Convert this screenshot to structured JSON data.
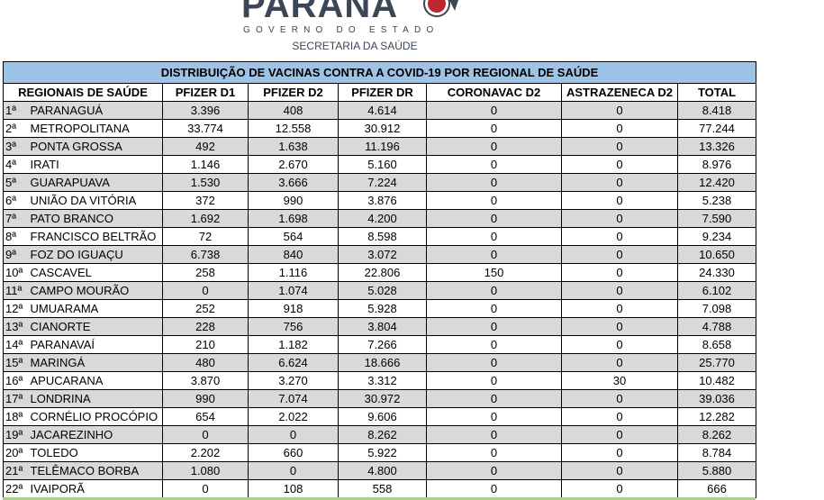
{
  "header": {
    "logo_text": "PARANÁ",
    "government": "GOVERNO DO ESTADO",
    "department": "SECRETARIA DA SAÚDE"
  },
  "table": {
    "title": "DISTRIBUIÇÃO DE VACINAS CONTRA A COVID-19 POR REGIONAL DE SAÚDE",
    "columns": [
      "REGIONAIS DE SAÚDE",
      "PFIZER D1",
      "PFIZER D2",
      "PFIZER DR",
      "CORONAVAC D2",
      "ASTRAZENECA D2",
      "TOTAL"
    ],
    "rows": [
      [
        "1ª",
        "PARANAGUÁ",
        "3.396",
        "408",
        "4.614",
        "0",
        "0",
        "8.418"
      ],
      [
        "2ª",
        "METROPOLITANA",
        "33.774",
        "12.558",
        "30.912",
        "0",
        "0",
        "77.244"
      ],
      [
        "3ª",
        "PONTA GROSSA",
        "492",
        "1.638",
        "11.196",
        "0",
        "0",
        "13.326"
      ],
      [
        "4ª",
        "IRATI",
        "1.146",
        "2.670",
        "5.160",
        "0",
        "0",
        "8.976"
      ],
      [
        "5ª",
        "GUARAPUAVA",
        "1.530",
        "3.666",
        "7.224",
        "0",
        "0",
        "12.420"
      ],
      [
        "6ª",
        "UNIÃO DA VITÓRIA",
        "372",
        "990",
        "3.876",
        "0",
        "0",
        "5.238"
      ],
      [
        "7ª",
        "PATO BRANCO",
        "1.692",
        "1.698",
        "4.200",
        "0",
        "0",
        "7.590"
      ],
      [
        "8ª",
        "FRANCISCO BELTRÃO",
        "72",
        "564",
        "8.598",
        "0",
        "0",
        "9.234"
      ],
      [
        "9ª",
        "FOZ DO IGUAÇU",
        "6.738",
        "840",
        "3.072",
        "0",
        "0",
        "10.650"
      ],
      [
        "10ª",
        "CASCAVEL",
        "258",
        "1.116",
        "22.806",
        "150",
        "0",
        "24.330"
      ],
      [
        "11ª",
        "CAMPO MOURÃO",
        "0",
        "1.074",
        "5.028",
        "0",
        "0",
        "6.102"
      ],
      [
        "12ª",
        "UMUARAMA",
        "252",
        "918",
        "5.928",
        "0",
        "0",
        "7.098"
      ],
      [
        "13ª",
        "CIANORTE",
        "228",
        "756",
        "3.804",
        "0",
        "0",
        "4.788"
      ],
      [
        "14ª",
        "PARANAVAÍ",
        "210",
        "1.182",
        "7.266",
        "0",
        "0",
        "8.658"
      ],
      [
        "15ª",
        "MARINGÁ",
        "480",
        "6.624",
        "18.666",
        "0",
        "0",
        "25.770"
      ],
      [
        "16ª",
        "APUCARANA",
        "3.870",
        "3.270",
        "3.312",
        "0",
        "30",
        "10.482"
      ],
      [
        "17ª",
        "LONDRINA",
        "990",
        "7.074",
        "30.972",
        "0",
        "0",
        "39.036"
      ],
      [
        "18ª",
        "CORNÉLIO PROCÓPIO",
        "654",
        "2.022",
        "9.606",
        "0",
        "0",
        "12.282"
      ],
      [
        "19ª",
        "JACAREZINHO",
        "0",
        "0",
        "8.262",
        "0",
        "0",
        "8.262"
      ],
      [
        "20ª",
        "TOLEDO",
        "2.202",
        "660",
        "5.922",
        "0",
        "0",
        "8.784"
      ],
      [
        "21ª",
        "TELÊMACO BORBA",
        "1.080",
        "0",
        "4.800",
        "0",
        "0",
        "5.880"
      ],
      [
        "22ª",
        "IVAIPORÃ",
        "0",
        "108",
        "558",
        "0",
        "0",
        "666"
      ]
    ]
  }
}
